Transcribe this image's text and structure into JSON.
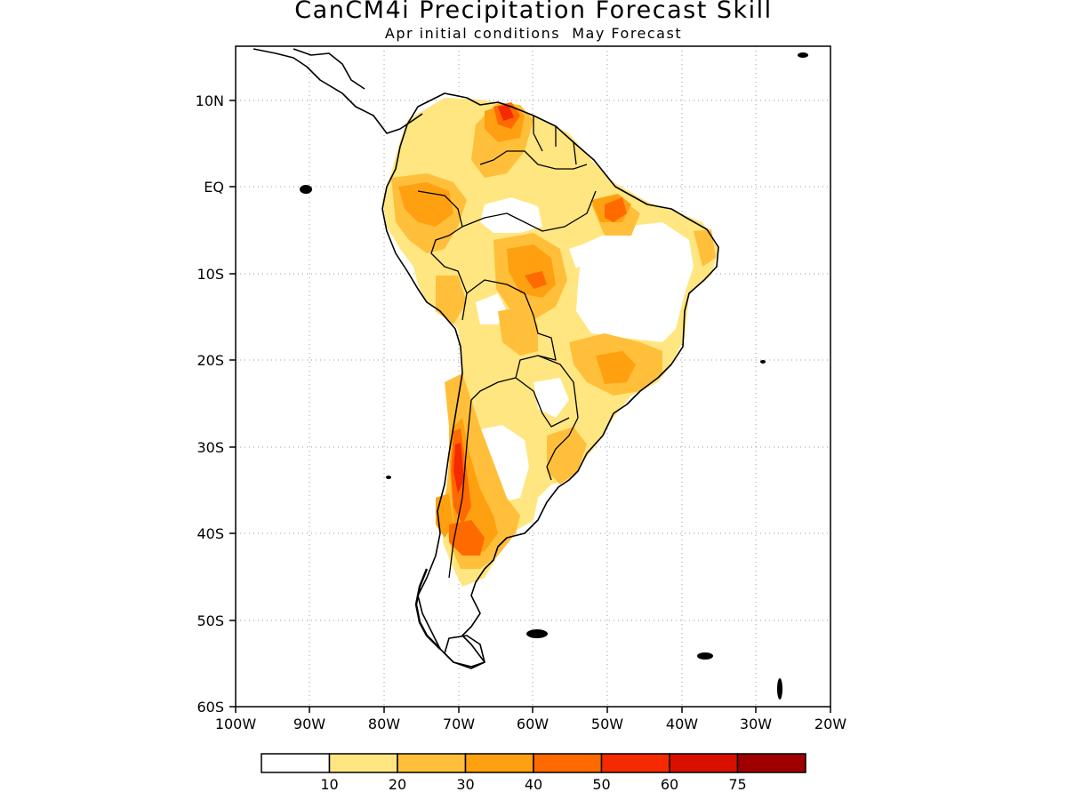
{
  "title": "CanCM4i Precipitation Forecast Skill",
  "subtitle": "Apr initial conditions  May Forecast",
  "lat_labels": [
    "10N",
    "EQ",
    "10S",
    "20S",
    "30S",
    "40S",
    "50S",
    "60S"
  ],
  "lon_labels": [
    "100W",
    "90W",
    "80W",
    "70W",
    "60W",
    "50W",
    "40W",
    "30W",
    "20W"
  ],
  "colorbar": {
    "colors": [
      "#ffffff",
      "#ffe680",
      "#ffbf3a",
      "#ffa010",
      "#ff6a00",
      "#f52a00",
      "#d91000",
      "#a00000"
    ],
    "labels": [
      "10",
      "20",
      "30",
      "40",
      "50",
      "60",
      "75"
    ]
  },
  "map": {
    "extent": {
      "lon_min": -100,
      "lon_max": -20,
      "lat_min": -60,
      "lat_max": 15
    },
    "gridlines": "dotted",
    "coastline_color": "#000000"
  }
}
